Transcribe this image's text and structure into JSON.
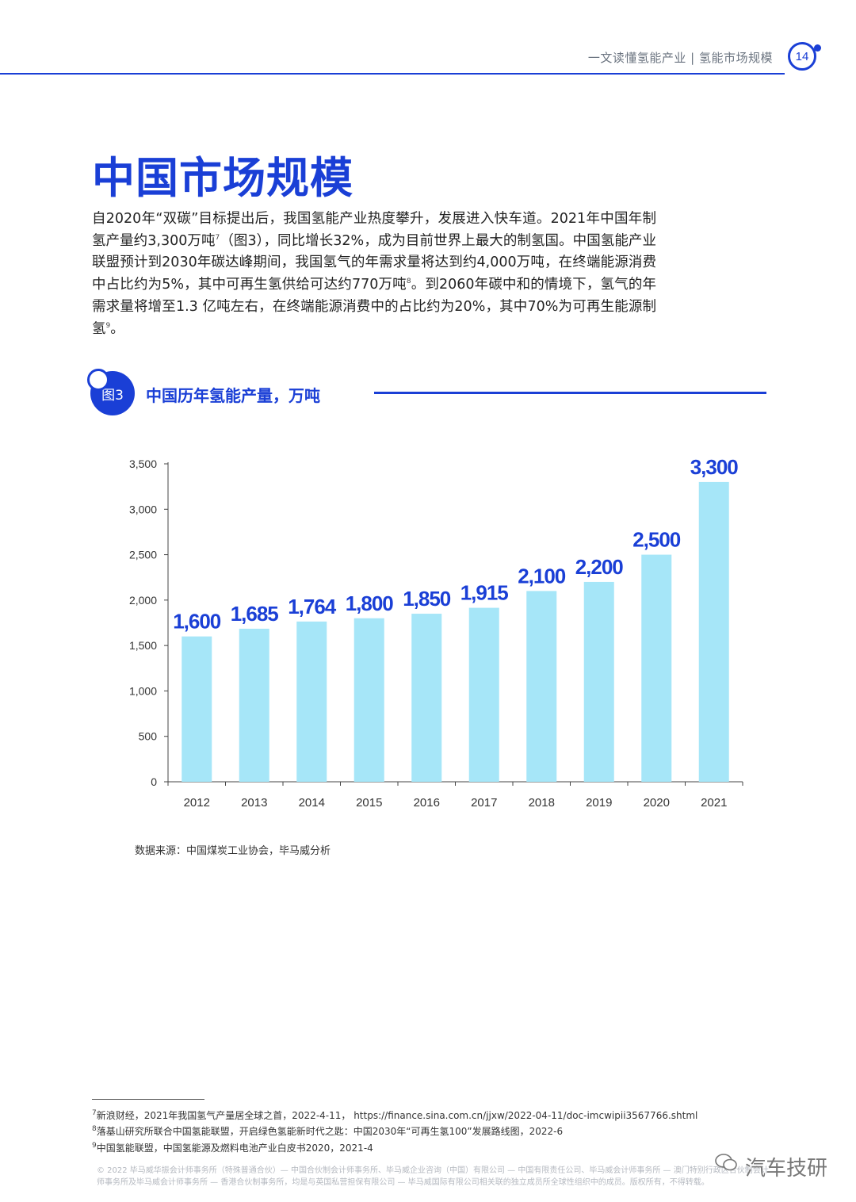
{
  "header": {
    "text": "一文读懂氢能产业 | 氢能市场规模",
    "page_number": "14"
  },
  "title": "中国市场规模",
  "paragraph": [
    {
      "t": "自2020年“双碳”目标提出后，我国氢能产业热度攀升，发展进入快车道。2021年中国年制氢产量约3,300万吨"
    },
    {
      "sup": "7"
    },
    {
      "t": "（图3），同比增长32%，成为目前世界上最大的制氢国。中国氢能产业联盟预计到2030年碳达峰期间，我国氢气的年需求量将达到约4,000万吨，在终端能源消费中占比约为5%，其中可再生氢供给可达约770万吨"
    },
    {
      "sup": "8"
    },
    {
      "t": "。到2060年碳中和的情境下，氢气的年需求量将增至1.3 亿吨左右，在终端能源消费中的占比约为20%，其中70%为可再生能源制氢"
    },
    {
      "sup": "9"
    },
    {
      "t": "。"
    }
  ],
  "figure": {
    "label": "图3",
    "title": "中国历年氢能产量，万吨"
  },
  "chart_data": {
    "type": "bar",
    "categories": [
      "2012",
      "2013",
      "2014",
      "2015",
      "2016",
      "2017",
      "2018",
      "2019",
      "2020",
      "2021"
    ],
    "values": [
      1600,
      1685,
      1764,
      1800,
      1850,
      1915,
      2100,
      2200,
      2500,
      3300
    ],
    "data_labels": [
      "1,600",
      "1,685",
      "1,764",
      "1,800",
      "1,850",
      "1,915",
      "2,100",
      "2,200",
      "2,500",
      "3,300"
    ],
    "yticks": [
      0,
      500,
      1000,
      1500,
      2000,
      2500,
      3000,
      3500
    ],
    "ytick_labels": [
      "0",
      "500",
      "1,000",
      "1,500",
      "2,000",
      "2,500",
      "3,000",
      "3,500"
    ],
    "ylim": [
      0,
      3500
    ],
    "title": "",
    "xlabel": "",
    "ylabel": "",
    "grid": false,
    "bar_color": "#a6e6f8",
    "label_color": "#1a3fd6"
  },
  "source": "数据来源：中国煤炭工业协会，毕马威分析",
  "footnotes": [
    {
      "num": "7",
      "text": "新浪财经，2021年我国氢气产量居全球之首，2022-4-11， https://finance.sina.com.cn/jjxw/2022-04-11/doc-imcwipii3567766.shtml"
    },
    {
      "num": "8",
      "text": "落基山研究所联合中国氢能联盟，开启绿色氢能新时代之匙：中国2030年“可再生氢100”发展路线图，2022-6"
    },
    {
      "num": "9",
      "text": "中国氢能联盟，中国氢能源及燃料电池产业白皮书2020，2021-4"
    }
  ],
  "copyright": "© 2022 毕马威华振会计师事务所（特殊普通合伙）— 中国合伙制会计师事务所、毕马威企业咨询（中国）有限公司 — 中国有限责任公司、毕马威会计师事务所 — 澳门特别行政区合伙制会计师事务所及毕马威会计师事务所 — 香港合伙制事务所，均是与英国私营担保有限公司 — 毕马威国际有限公司相关联的独立成员所全球性组织中的成员。版权所有，不得转载。",
  "watermark": "汽车技研",
  "colors": {
    "accent": "#1a3fd6",
    "bar": "#a6e6f8"
  }
}
